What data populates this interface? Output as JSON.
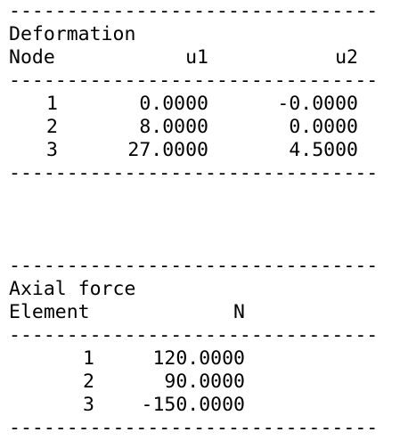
{
  "separator": "--------------------------------",
  "deformation": {
    "title": "Deformation",
    "headers": [
      "Node",
      "u1",
      "u2"
    ],
    "rows": [
      [
        "1",
        "0.0000",
        "-0.0000"
      ],
      [
        "2",
        "8.0000",
        "0.0000"
      ],
      [
        "3",
        "27.0000",
        "4.5000"
      ]
    ]
  },
  "axial_force": {
    "title": "Axial force",
    "headers": [
      "Element",
      "N"
    ],
    "rows": [
      [
        "1",
        "120.0000"
      ],
      [
        "2",
        "90.0000"
      ],
      [
        "3",
        "-150.0000"
      ]
    ]
  }
}
